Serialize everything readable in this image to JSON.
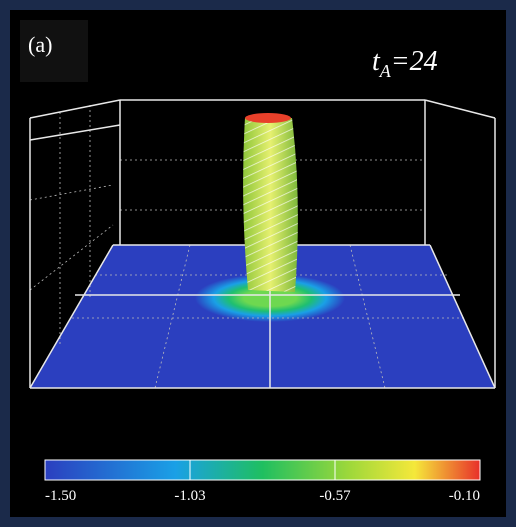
{
  "panel": {
    "label": "(a)",
    "time_label": {
      "symbol": "t",
      "subscript": "A",
      "value": "=24"
    }
  },
  "colorbar": {
    "tick_labels": [
      "-1.50",
      "-1.03",
      "-0.57",
      "-0.10"
    ]
  }
}
